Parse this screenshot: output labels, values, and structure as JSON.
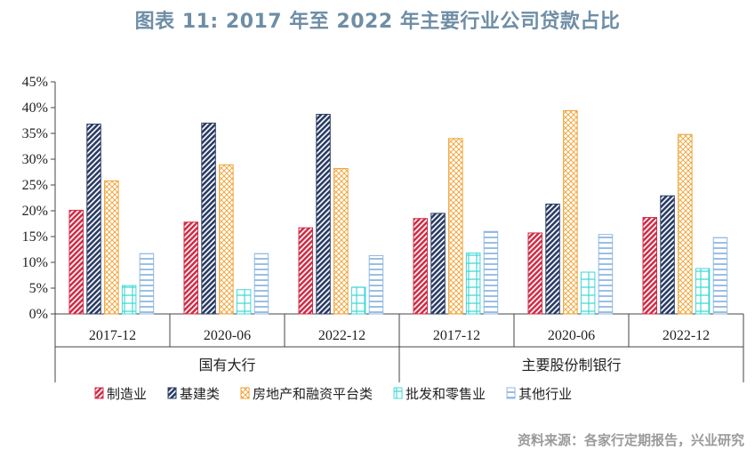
{
  "title": "图表 11:   2017 年至 2022 年主要行业公司贷款占比",
  "source": "资料来源：各家行定期报告，兴业研究",
  "colors": {
    "制造业": "#d0304a",
    "基建类": "#2c3e66",
    "房地产和融资平台类": "#f0a030",
    "批发和零售业": "#40d8d8",
    "其他行业": "#90b8e0"
  },
  "chart_data": {
    "type": "bar",
    "groups": [
      "国有大行",
      "主要股份制银行"
    ],
    "categories": [
      "2017-12",
      "2020-06",
      "2022-12",
      "2017-12",
      "2020-06",
      "2022-12"
    ],
    "yticks": [
      "0%",
      "5%",
      "10%",
      "15%",
      "20%",
      "25%",
      "30%",
      "35%",
      "40%",
      "45%"
    ],
    "ylim": [
      0,
      45
    ],
    "legend_position": "bottom",
    "series": [
      {
        "name": "制造业",
        "values": [
          20.1,
          17.8,
          16.7,
          18.5,
          15.7,
          18.7
        ]
      },
      {
        "name": "基建类",
        "values": [
          36.8,
          37.0,
          38.7,
          19.5,
          21.3,
          22.9
        ]
      },
      {
        "name": "房地产和融资平台类",
        "values": [
          25.8,
          28.9,
          28.2,
          34.0,
          39.4,
          34.8
        ]
      },
      {
        "name": "批发和零售业",
        "values": [
          5.5,
          4.7,
          5.2,
          11.8,
          8.1,
          8.8
        ]
      },
      {
        "name": "其他行业",
        "values": [
          11.7,
          11.7,
          11.3,
          16.0,
          15.4,
          14.8
        ]
      }
    ]
  }
}
